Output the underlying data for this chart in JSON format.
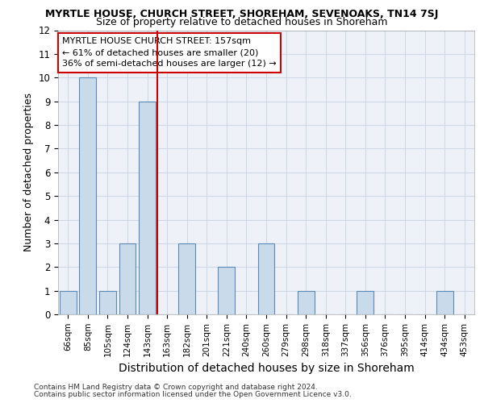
{
  "title": "MYRTLE HOUSE, CHURCH STREET, SHOREHAM, SEVENOAKS, TN14 7SJ",
  "subtitle": "Size of property relative to detached houses in Shoreham",
  "xlabel": "Distribution of detached houses by size in Shoreham",
  "ylabel": "Number of detached properties",
  "categories": [
    "66sqm",
    "85sqm",
    "105sqm",
    "124sqm",
    "143sqm",
    "163sqm",
    "182sqm",
    "201sqm",
    "221sqm",
    "240sqm",
    "260sqm",
    "279sqm",
    "298sqm",
    "318sqm",
    "337sqm",
    "356sqm",
    "376sqm",
    "395sqm",
    "414sqm",
    "434sqm",
    "453sqm"
  ],
  "values": [
    1,
    10,
    1,
    3,
    9,
    0,
    3,
    0,
    2,
    0,
    3,
    0,
    1,
    0,
    0,
    1,
    0,
    0,
    0,
    1,
    0
  ],
  "bar_color": "#c9daea",
  "bar_edge_color": "#5a8ab5",
  "red_line_x": 5,
  "ylim": [
    0,
    12
  ],
  "yticks": [
    0,
    1,
    2,
    3,
    4,
    5,
    6,
    7,
    8,
    9,
    10,
    11,
    12
  ],
  "annotation_text": "MYRTLE HOUSE CHURCH STREET: 157sqm\n← 61% of detached houses are smaller (20)\n36% of semi-detached houses are larger (12) →",
  "annotation_box_color": "#ffffff",
  "annotation_box_edge_color": "#cc0000",
  "red_line_color": "#cc0000",
  "grid_color": "#d0d8e8",
  "background_color": "#eef2f8",
  "footer1": "Contains HM Land Registry data © Crown copyright and database right 2024.",
  "footer2": "Contains public sector information licensed under the Open Government Licence v3.0.",
  "title_fontsize": 9,
  "subtitle_fontsize": 9,
  "ylabel_fontsize": 9,
  "xlabel_fontsize": 10
}
